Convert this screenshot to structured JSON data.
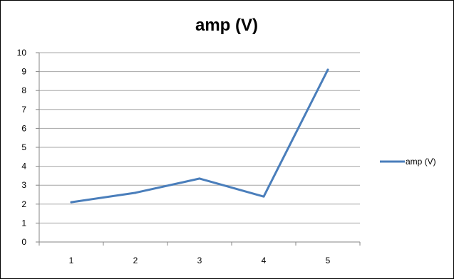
{
  "chart_data": {
    "type": "line",
    "title": "amp (V)",
    "xlabel": "",
    "ylabel": "",
    "categories": [
      "1",
      "2",
      "3",
      "4",
      "5"
    ],
    "ylim": [
      0,
      10
    ],
    "yticks": [
      "0",
      "1",
      "2",
      "3",
      "4",
      "5",
      "6",
      "7",
      "8",
      "9",
      "10"
    ],
    "grid": true,
    "legend": "right",
    "series": [
      {
        "name": "amp (V)",
        "color": "#4A7EBB",
        "values": [
          2.1,
          2.6,
          3.35,
          2.4,
          9.1
        ]
      }
    ]
  }
}
